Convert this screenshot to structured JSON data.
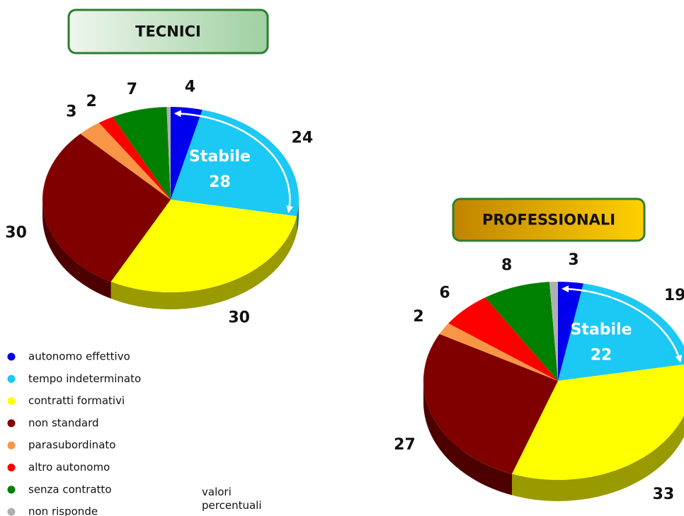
{
  "chart_data": [
    {
      "type": "pie",
      "title": "TECNICI",
      "categories": [
        "autonomo effettivo",
        "tempo indeterminato",
        "contratti formativi",
        "non standard",
        "parasubordinato",
        "altro autonomo",
        "senza contratto",
        "non risponde"
      ],
      "colors": [
        "#0000ee",
        "#1cc8f4",
        "#ffff00",
        "#800000",
        "#f79646",
        "#ff0000",
        "#008000",
        "#b0b0b0"
      ],
      "values": [
        4,
        24,
        30,
        30,
        3,
        2,
        7,
        0.5
      ],
      "value_labels": [
        "4",
        "24",
        "30",
        "30",
        "3",
        "2",
        "7",
        null
      ],
      "annotation": {
        "label": "Stabile",
        "value": 28
      }
    },
    {
      "type": "pie",
      "title": "PROFESSIONALI",
      "categories": [
        "autonomo effettivo",
        "tempo indeterminato",
        "contratti formativi",
        "non standard",
        "parasubordinato",
        "altro autonomo",
        "senza contratto",
        "non risponde"
      ],
      "colors": [
        "#0000ee",
        "#1cc8f4",
        "#ffff00",
        "#800000",
        "#f79646",
        "#ff0000",
        "#008000",
        "#b0b0b0"
      ],
      "values": [
        3,
        19,
        33,
        27,
        2,
        6,
        8,
        1
      ],
      "value_labels": [
        "3",
        "19",
        "33",
        "27",
        "2",
        "6",
        "8",
        null
      ],
      "annotation": {
        "label": "Stabile",
        "value": 22
      }
    }
  ],
  "note": "valori percentuali"
}
